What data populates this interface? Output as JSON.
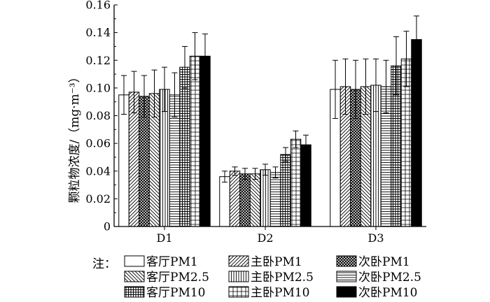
{
  "chart_data": {
    "type": "bar",
    "title": "",
    "xlabel": "",
    "ylabel": "颗粒物浓度/（mg·m⁻³）",
    "ylim": [
      0,
      0.16
    ],
    "yticks": [
      "0",
      "0.02",
      "0.04",
      "0.06",
      "0.08",
      "0.10",
      "0.12",
      "0.14",
      "0.16"
    ],
    "categories": [
      "D1",
      "D2",
      "D3"
    ],
    "series": [
      {
        "name": "客厅PM1",
        "pattern": "blank",
        "values": [
          0.095,
          0.036,
          0.099
        ],
        "errors": [
          0.014,
          0.004,
          0.021
        ]
      },
      {
        "name": "主卧PM1",
        "pattern": "diag-fwd",
        "values": [
          0.097,
          0.04,
          0.101
        ],
        "errors": [
          0.015,
          0.003,
          0.02
        ]
      },
      {
        "name": "次卧PM1",
        "pattern": "crosshatch",
        "values": [
          0.094,
          0.038,
          0.099
        ],
        "errors": [
          0.015,
          0.004,
          0.021
        ]
      },
      {
        "name": "客厅PM2.5",
        "pattern": "diag-back",
        "values": [
          0.096,
          0.038,
          0.101
        ],
        "errors": [
          0.017,
          0.004,
          0.02
        ]
      },
      {
        "name": "主卧PM2.5",
        "pattern": "vertical",
        "values": [
          0.099,
          0.041,
          0.102
        ],
        "errors": [
          0.016,
          0.004,
          0.019
        ]
      },
      {
        "name": "次卧PM2.5",
        "pattern": "horizontal",
        "values": [
          0.095,
          0.039,
          0.101
        ],
        "errors": [
          0.016,
          0.004,
          0.019
        ]
      },
      {
        "name": "客厅PM10",
        "pattern": "grid-dense",
        "values": [
          0.115,
          0.052,
          0.116
        ],
        "errors": [
          0.015,
          0.005,
          0.021
        ]
      },
      {
        "name": "主卧PM10",
        "pattern": "grid",
        "values": [
          0.123,
          0.063,
          0.121
        ],
        "errors": [
          0.017,
          0.006,
          0.02
        ]
      },
      {
        "name": "次卧PM10",
        "pattern": "solid",
        "values": [
          0.123,
          0.059,
          0.135
        ],
        "errors": [
          0.016,
          0.007,
          0.017
        ]
      }
    ],
    "legend": {
      "prefix": "注：",
      "placement": "bottom",
      "columns": 3
    }
  }
}
